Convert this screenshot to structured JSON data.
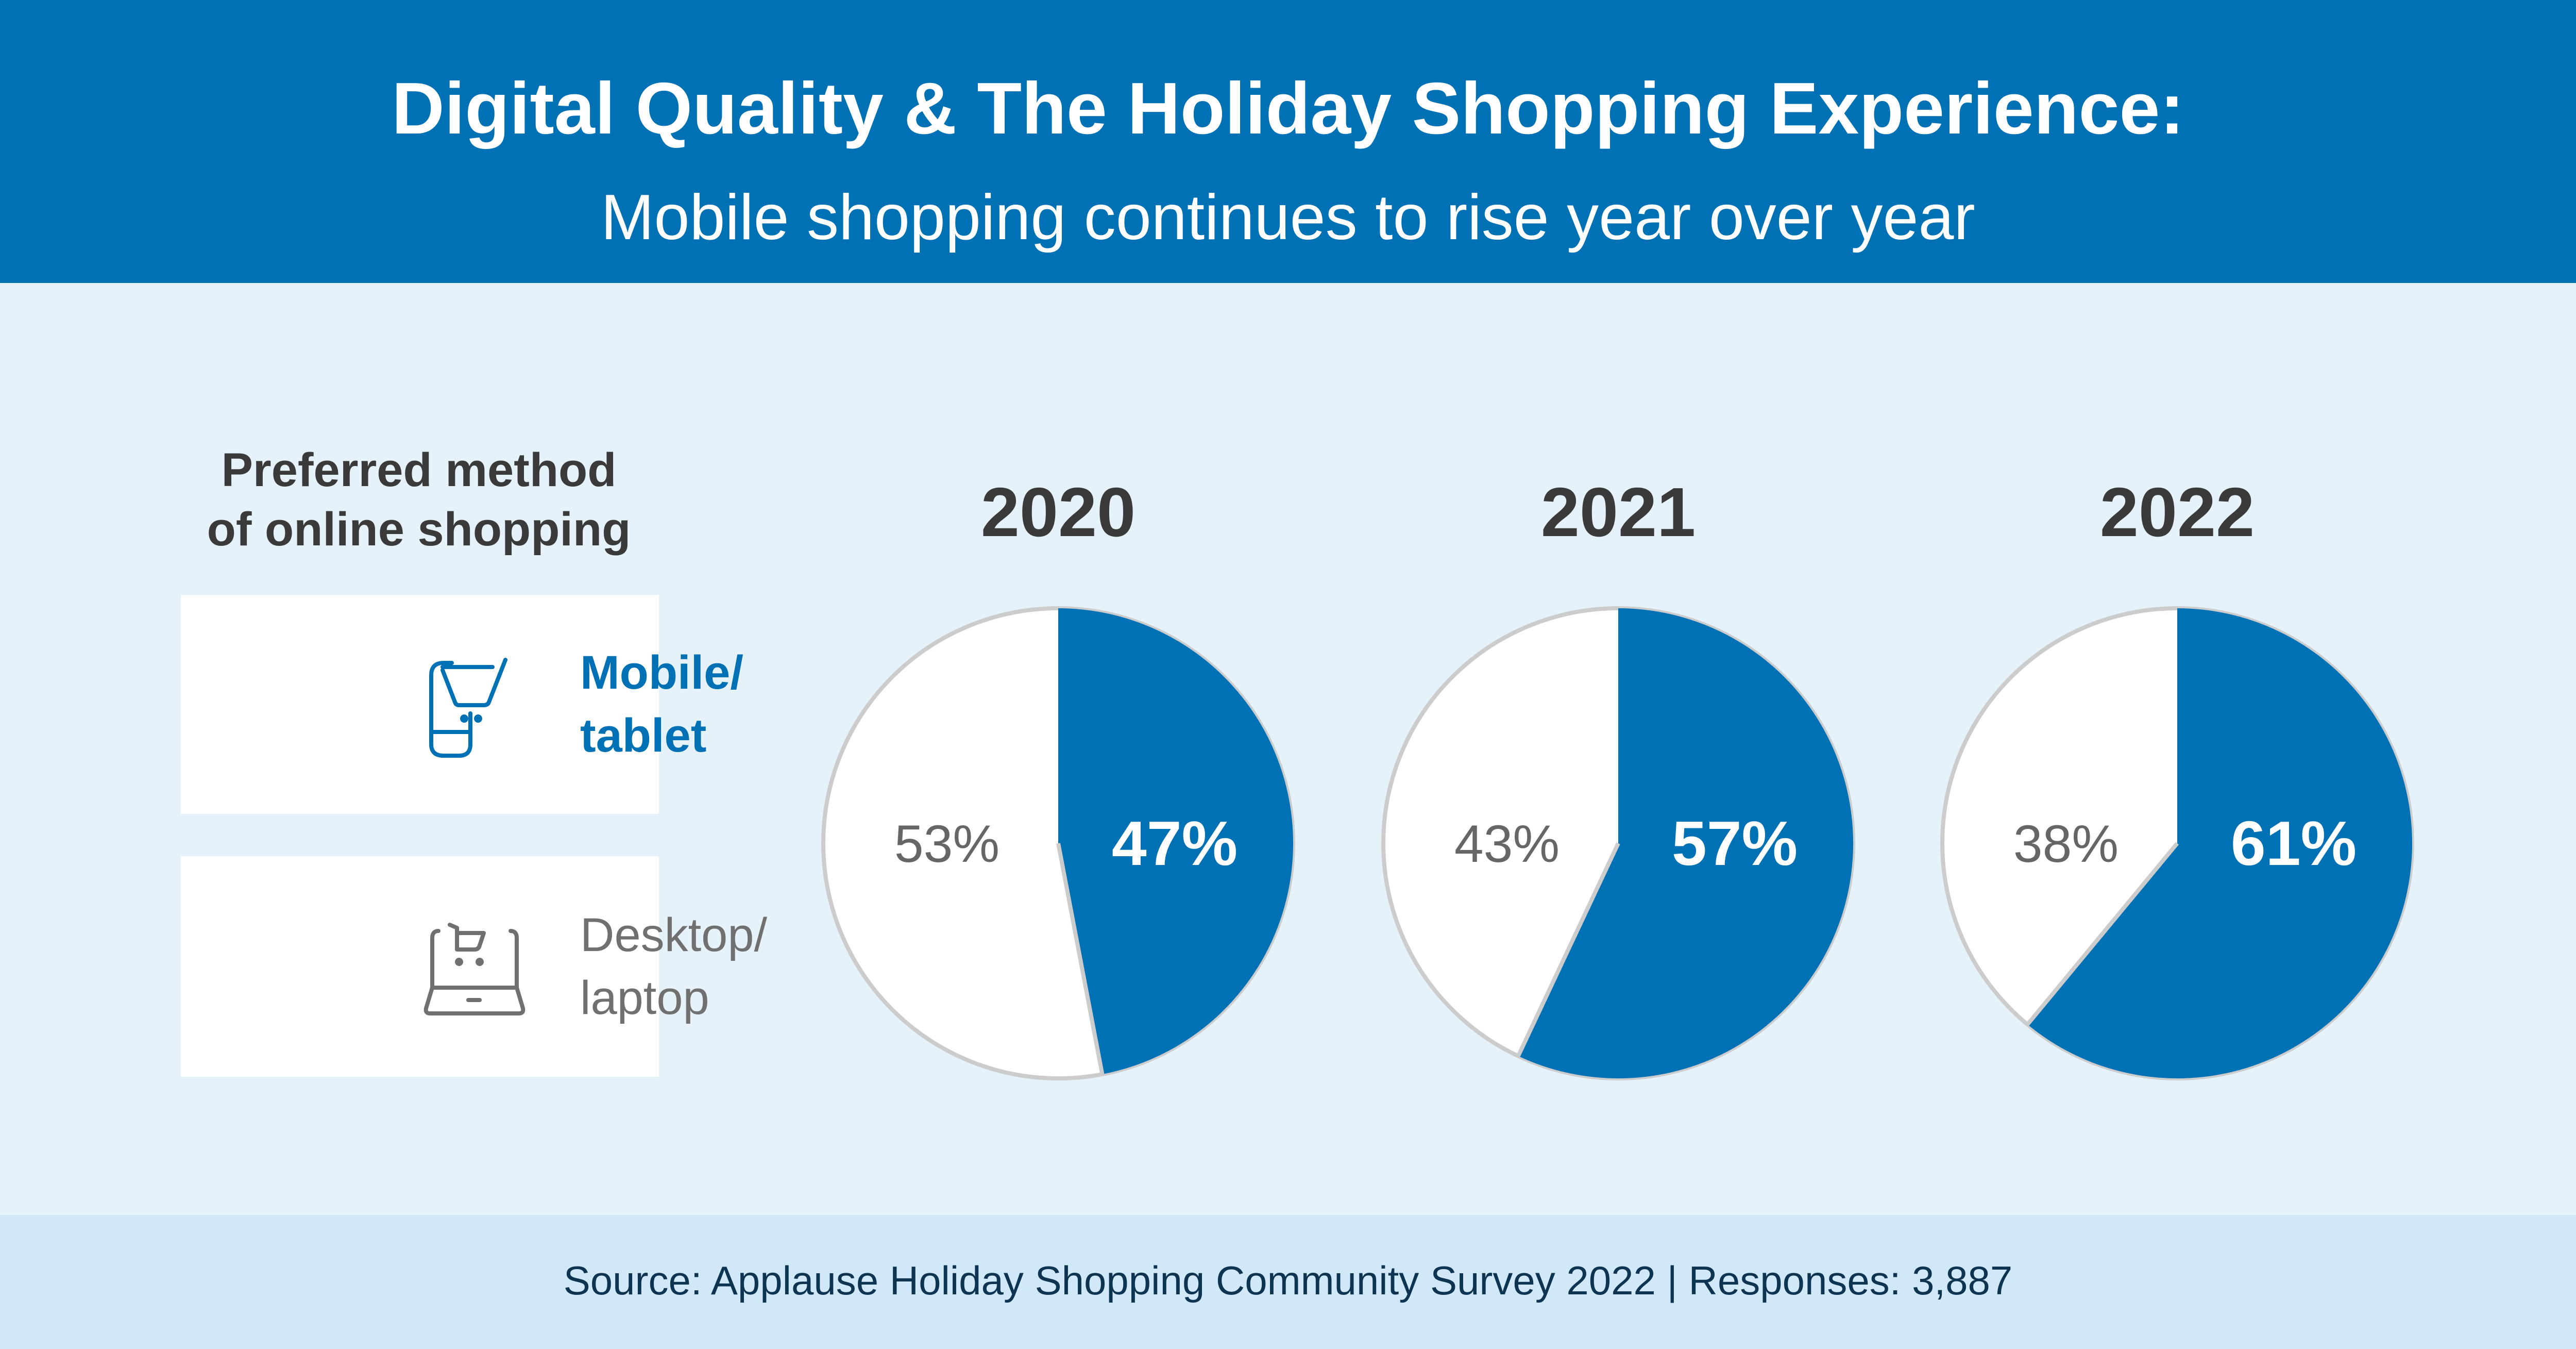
{
  "header": {
    "title": "Digital Quality & The Holiday Shopping Experience:",
    "subtitle": "Mobile shopping continues to rise year over year"
  },
  "legend": {
    "heading_line1": "Preferred method",
    "heading_line2": "of online shopping",
    "items": [
      {
        "label_line1": "Mobile/",
        "label_line2": "tablet",
        "icon": "mobile-cart-icon",
        "color": "#0071b5"
      },
      {
        "label_line1": "Desktop/",
        "label_line2": "laptop",
        "icon": "laptop-cart-icon",
        "color": "#ffffff"
      }
    ]
  },
  "chart_data": {
    "type": "pie",
    "series_names": [
      "Mobile/tablet",
      "Desktop/laptop"
    ],
    "colors": {
      "mobile": "#0071b5",
      "desktop": "#ffffff",
      "outline": "#cccccc"
    },
    "pies": [
      {
        "year": "2020",
        "mobile": 47,
        "desktop": 53,
        "mobile_label": "47%",
        "desktop_label": "53%"
      },
      {
        "year": "2021",
        "mobile": 57,
        "desktop": 43,
        "mobile_label": "57%",
        "desktop_label": "43%"
      },
      {
        "year": "2022",
        "mobile": 61,
        "desktop": 38,
        "mobile_label": "61%",
        "desktop_label": "38%"
      }
    ]
  },
  "footer": {
    "source": "Source: Applause Holiday Shopping Community Survey 2022 | Responses: 3,887"
  }
}
